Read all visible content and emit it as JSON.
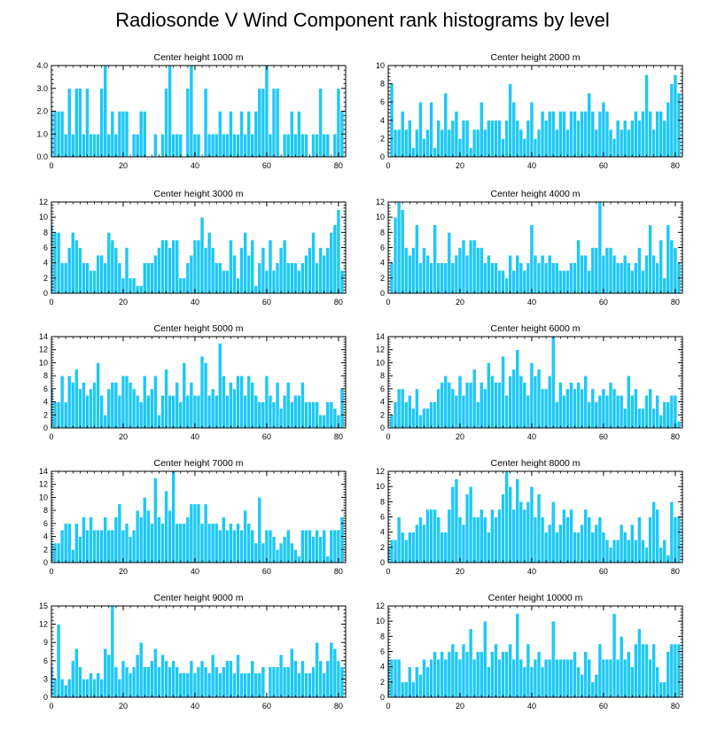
{
  "title": "Radiosonde V Wind Component rank histograms by level",
  "colors": {
    "bar": "#1EC8F5",
    "axis": "#000000",
    "background": "#ffffff"
  },
  "chart_data": [
    {
      "type": "bar",
      "title": "Center height 1000 m",
      "xlim": [
        0,
        82
      ],
      "ylim": [
        0,
        4
      ],
      "xticks": [
        0,
        20,
        40,
        60,
        80
      ],
      "yticks": [
        0,
        1,
        2,
        3,
        4
      ],
      "ytick_labels": [
        "0.0",
        "1.0",
        "2.0",
        "3.0",
        "4.0"
      ],
      "values": [
        2,
        2,
        2,
        2,
        1,
        3,
        1,
        3,
        3,
        1,
        3,
        1,
        1,
        1,
        3,
        4,
        1,
        2,
        1,
        2,
        2,
        2,
        0,
        1,
        1,
        2,
        2,
        0,
        0,
        1,
        0,
        1,
        3,
        4,
        1,
        1,
        1,
        0,
        3,
        4,
        1,
        1,
        0,
        3,
        1,
        1,
        1,
        2,
        1,
        1,
        2,
        1,
        1,
        2,
        1,
        2,
        1,
        2,
        3,
        3,
        4,
        1,
        3,
        3,
        0,
        1,
        1,
        2,
        1,
        2,
        1,
        1,
        0,
        1,
        1,
        3,
        1,
        1,
        0,
        1,
        3,
        2
      ]
    },
    {
      "type": "bar",
      "title": "Center height 2000 m",
      "xlim": [
        0,
        82
      ],
      "ylim": [
        0,
        10
      ],
      "xticks": [
        0,
        20,
        40,
        60,
        80
      ],
      "yticks": [
        0,
        2,
        4,
        6,
        8,
        10
      ],
      "ytick_labels": [
        "0",
        "2",
        "4",
        "6",
        "8",
        "10"
      ],
      "values": [
        0,
        8,
        3,
        3,
        5,
        3,
        4,
        1,
        3,
        6,
        2,
        3,
        6,
        1,
        4,
        3,
        7,
        3,
        4,
        5,
        2,
        4,
        4,
        1,
        3,
        3,
        6,
        3,
        4,
        4,
        4,
        4,
        2,
        4,
        8,
        6,
        4,
        3,
        2,
        4,
        6,
        2,
        3,
        5,
        4,
        5,
        5,
        3,
        5,
        5,
        3,
        5,
        5,
        4,
        5,
        5,
        7,
        5,
        3,
        5,
        6,
        5,
        3,
        2,
        4,
        3,
        4,
        3,
        4,
        5,
        4,
        5,
        9,
        5,
        3,
        5,
        5,
        4,
        6,
        8,
        9,
        7
      ]
    },
    {
      "type": "bar",
      "title": "Center height 3000 m",
      "xlim": [
        0,
        82
      ],
      "ylim": [
        0,
        12
      ],
      "xticks": [
        0,
        20,
        40,
        60,
        80
      ],
      "yticks": [
        0,
        2,
        4,
        6,
        8,
        10,
        12
      ],
      "ytick_labels": [
        "0",
        "2",
        "4",
        "6",
        "8",
        "10",
        "12"
      ],
      "values": [
        9,
        8,
        8,
        4,
        4,
        6,
        8,
        7,
        6,
        4,
        4,
        3,
        3,
        5,
        5,
        4,
        8,
        7,
        6,
        4,
        2,
        6,
        2,
        2,
        1,
        1,
        4,
        4,
        4,
        5,
        6,
        7,
        7,
        6,
        7,
        7,
        2,
        2,
        4,
        5,
        7,
        7,
        10,
        6,
        8,
        6,
        4,
        4,
        3,
        3,
        7,
        5,
        2,
        6,
        8,
        5,
        7,
        1,
        4,
        6,
        3,
        7,
        3,
        4,
        6,
        7,
        4,
        4,
        4,
        3,
        4,
        5,
        6,
        8,
        4,
        6,
        5,
        6,
        8,
        9,
        11,
        3
      ]
    },
    {
      "type": "bar",
      "title": "Center height 4000 m",
      "xlim": [
        0,
        82
      ],
      "ylim": [
        0,
        12
      ],
      "xticks": [
        0,
        20,
        40,
        60,
        80
      ],
      "yticks": [
        0,
        2,
        4,
        6,
        8,
        10,
        12
      ],
      "ytick_labels": [
        "0",
        "2",
        "4",
        "6",
        "8",
        "10",
        "12"
      ],
      "values": [
        0,
        4,
        10,
        12,
        11,
        6,
        5,
        6,
        9,
        4,
        6,
        5,
        4,
        9,
        4,
        4,
        4,
        8,
        4,
        5,
        6,
        7,
        5,
        7,
        7,
        6,
        6,
        4,
        5,
        4,
        4,
        3,
        3,
        2,
        5,
        3,
        5,
        4,
        3,
        4,
        9,
        5,
        4,
        5,
        4,
        5,
        4,
        4,
        3,
        3,
        3,
        4,
        4,
        7,
        5,
        5,
        3,
        6,
        6,
        12,
        5,
        6,
        6,
        5,
        4,
        4,
        5,
        4,
        3,
        4,
        6,
        3,
        5,
        9,
        5,
        4,
        7,
        2,
        9,
        7,
        6,
        4
      ]
    },
    {
      "type": "bar",
      "title": "Center height 5000 m",
      "xlim": [
        0,
        82
      ],
      "ylim": [
        0,
        14
      ],
      "xticks": [
        0,
        20,
        40,
        60,
        80
      ],
      "yticks": [
        0,
        2,
        4,
        6,
        8,
        10,
        12,
        14
      ],
      "ytick_labels": [
        "0",
        "2",
        "4",
        "6",
        "8",
        "10",
        "12",
        "14"
      ],
      "values": [
        6,
        4,
        4,
        8,
        4,
        8,
        7,
        9,
        6,
        7,
        5,
        6,
        7,
        10,
        5,
        2,
        6,
        7,
        7,
        5,
        8,
        8,
        7,
        6,
        5,
        4,
        8,
        5,
        6,
        8,
        2,
        5,
        9,
        5,
        5,
        7,
        4,
        10,
        5,
        7,
        5,
        5,
        11,
        10,
        5,
        6,
        5,
        13,
        8,
        5,
        7,
        6,
        8,
        8,
        5,
        8,
        7,
        5,
        4,
        4,
        8,
        5,
        4,
        7,
        3,
        5,
        7,
        4,
        5,
        5,
        7,
        4,
        4,
        4,
        4,
        2,
        2,
        4,
        4,
        3,
        2,
        6
      ]
    },
    {
      "type": "bar",
      "title": "Center height 6000 m",
      "xlim": [
        0,
        82
      ],
      "ylim": [
        0,
        14
      ],
      "xticks": [
        0,
        20,
        40,
        60,
        80
      ],
      "yticks": [
        0,
        2,
        4,
        6,
        8,
        10,
        12,
        14
      ],
      "ytick_labels": [
        "0",
        "2",
        "4",
        "6",
        "8",
        "10",
        "12",
        "14"
      ],
      "values": [
        0,
        2,
        4,
        6,
        6,
        4,
        5,
        3,
        6,
        2,
        3,
        3,
        4,
        4,
        6,
        7,
        8,
        7,
        6,
        5,
        8,
        5,
        7,
        7,
        9,
        4,
        7,
        6,
        10,
        8,
        7,
        7,
        11,
        5,
        8,
        9,
        12,
        8,
        7,
        5,
        10,
        8,
        9,
        6,
        6,
        8,
        14,
        4,
        7,
        5,
        6,
        7,
        6,
        7,
        6,
        8,
        4,
        6,
        4,
        5,
        6,
        5,
        7,
        6,
        5,
        5,
        3,
        8,
        5,
        6,
        3,
        3,
        5,
        6,
        3,
        5,
        2,
        4,
        4,
        5,
        5,
        1
      ]
    },
    {
      "type": "bar",
      "title": "Center height 7000 m",
      "xlim": [
        0,
        82
      ],
      "ylim": [
        0,
        14
      ],
      "xticks": [
        0,
        20,
        40,
        60,
        80
      ],
      "yticks": [
        0,
        2,
        4,
        6,
        8,
        10,
        12,
        14
      ],
      "ytick_labels": [
        "0",
        "2",
        "4",
        "6",
        "8",
        "10",
        "12",
        "14"
      ],
      "values": [
        3,
        3,
        3,
        5,
        6,
        6,
        2,
        6,
        4,
        7,
        5,
        7,
        5,
        5,
        5,
        7,
        5,
        5,
        7,
        9,
        5,
        6,
        4,
        5,
        8,
        7,
        10,
        8,
        6,
        13,
        7,
        6,
        11,
        8,
        14,
        6,
        6,
        6,
        7,
        9,
        9,
        9,
        6,
        9,
        6,
        6,
        6,
        5,
        7,
        5,
        6,
        5,
        6,
        5,
        8,
        6,
        5,
        3,
        10,
        3,
        5,
        5,
        4,
        2,
        3,
        4,
        5,
        3,
        2,
        1,
        5,
        5,
        5,
        4,
        5,
        4,
        5,
        1,
        5,
        5,
        5,
        7
      ]
    },
    {
      "type": "bar",
      "title": "Center height 8000 m",
      "xlim": [
        0,
        82
      ],
      "ylim": [
        0,
        12
      ],
      "xticks": [
        0,
        20,
        40,
        60,
        80
      ],
      "yticks": [
        0,
        2,
        4,
        6,
        8,
        10,
        12
      ],
      "ytick_labels": [
        "0",
        "2",
        "4",
        "6",
        "8",
        "10",
        "12"
      ],
      "values": [
        2,
        3,
        3,
        6,
        4,
        3,
        4,
        4,
        5,
        6,
        5,
        7,
        7,
        7,
        6,
        4,
        4,
        7,
        10,
        11,
        6,
        5,
        9,
        10,
        6,
        6,
        7,
        6,
        4,
        7,
        6,
        7,
        9,
        12,
        10,
        7,
        11,
        8,
        7,
        8,
        10,
        6,
        9,
        6,
        4,
        5,
        8,
        4,
        5,
        7,
        6,
        7,
        4,
        4,
        5,
        7,
        6,
        4,
        5,
        6,
        4,
        3,
        2,
        3,
        3,
        5,
        4,
        3,
        5,
        3,
        6,
        3,
        2,
        6,
        8,
        7,
        2,
        3,
        1,
        8,
        6,
        6
      ]
    },
    {
      "type": "bar",
      "title": "Center height 9000 m",
      "xlim": [
        0,
        82
      ],
      "ylim": [
        0,
        15
      ],
      "xticks": [
        0,
        20,
        40,
        60,
        80
      ],
      "yticks": [
        0,
        3,
        6,
        9,
        12,
        15
      ],
      "ytick_labels": [
        "0",
        "3",
        "6",
        "9",
        "12",
        "15"
      ],
      "values": [
        5,
        3,
        12,
        3,
        2,
        3,
        6,
        8,
        5,
        3,
        3,
        4,
        3,
        4,
        3,
        8,
        7,
        15,
        5,
        3,
        6,
        5,
        4,
        5,
        7,
        9,
        5,
        5,
        6,
        8,
        5,
        7,
        6,
        5,
        6,
        5,
        4,
        4,
        4,
        6,
        4,
        5,
        6,
        5,
        4,
        7,
        5,
        4,
        5,
        6,
        6,
        4,
        7,
        4,
        4,
        4,
        6,
        4,
        4,
        5,
        0,
        5,
        5,
        5,
        7,
        5,
        5,
        8,
        6,
        4,
        6,
        4,
        4,
        5,
        9,
        6,
        4,
        6,
        9,
        8,
        6,
        5
      ]
    },
    {
      "type": "bar",
      "title": "Center height 10000 m",
      "xlim": [
        0,
        82
      ],
      "ylim": [
        0,
        12
      ],
      "xticks": [
        0,
        20,
        40,
        60,
        80
      ],
      "yticks": [
        0,
        2,
        4,
        6,
        8,
        10,
        12
      ],
      "ytick_labels": [
        "0",
        "2",
        "4",
        "6",
        "8",
        "10",
        "12"
      ],
      "values": [
        5,
        5,
        5,
        5,
        2,
        2,
        4,
        2,
        4,
        3,
        5,
        4,
        5,
        6,
        5,
        6,
        5,
        6,
        7,
        6,
        5,
        7,
        6,
        9,
        5,
        6,
        6,
        10,
        4,
        6,
        7,
        5,
        6,
        6,
        7,
        5,
        11,
        5,
        4,
        7,
        4,
        5,
        6,
        4,
        5,
        5,
        10,
        5,
        5,
        5,
        5,
        5,
        6,
        4,
        3,
        6,
        5,
        2,
        3,
        7,
        5,
        5,
        5,
        11,
        5,
        8,
        5,
        6,
        4,
        7,
        9,
        7,
        7,
        5,
        7,
        4,
        2,
        2,
        6,
        7,
        7,
        7
      ]
    }
  ]
}
